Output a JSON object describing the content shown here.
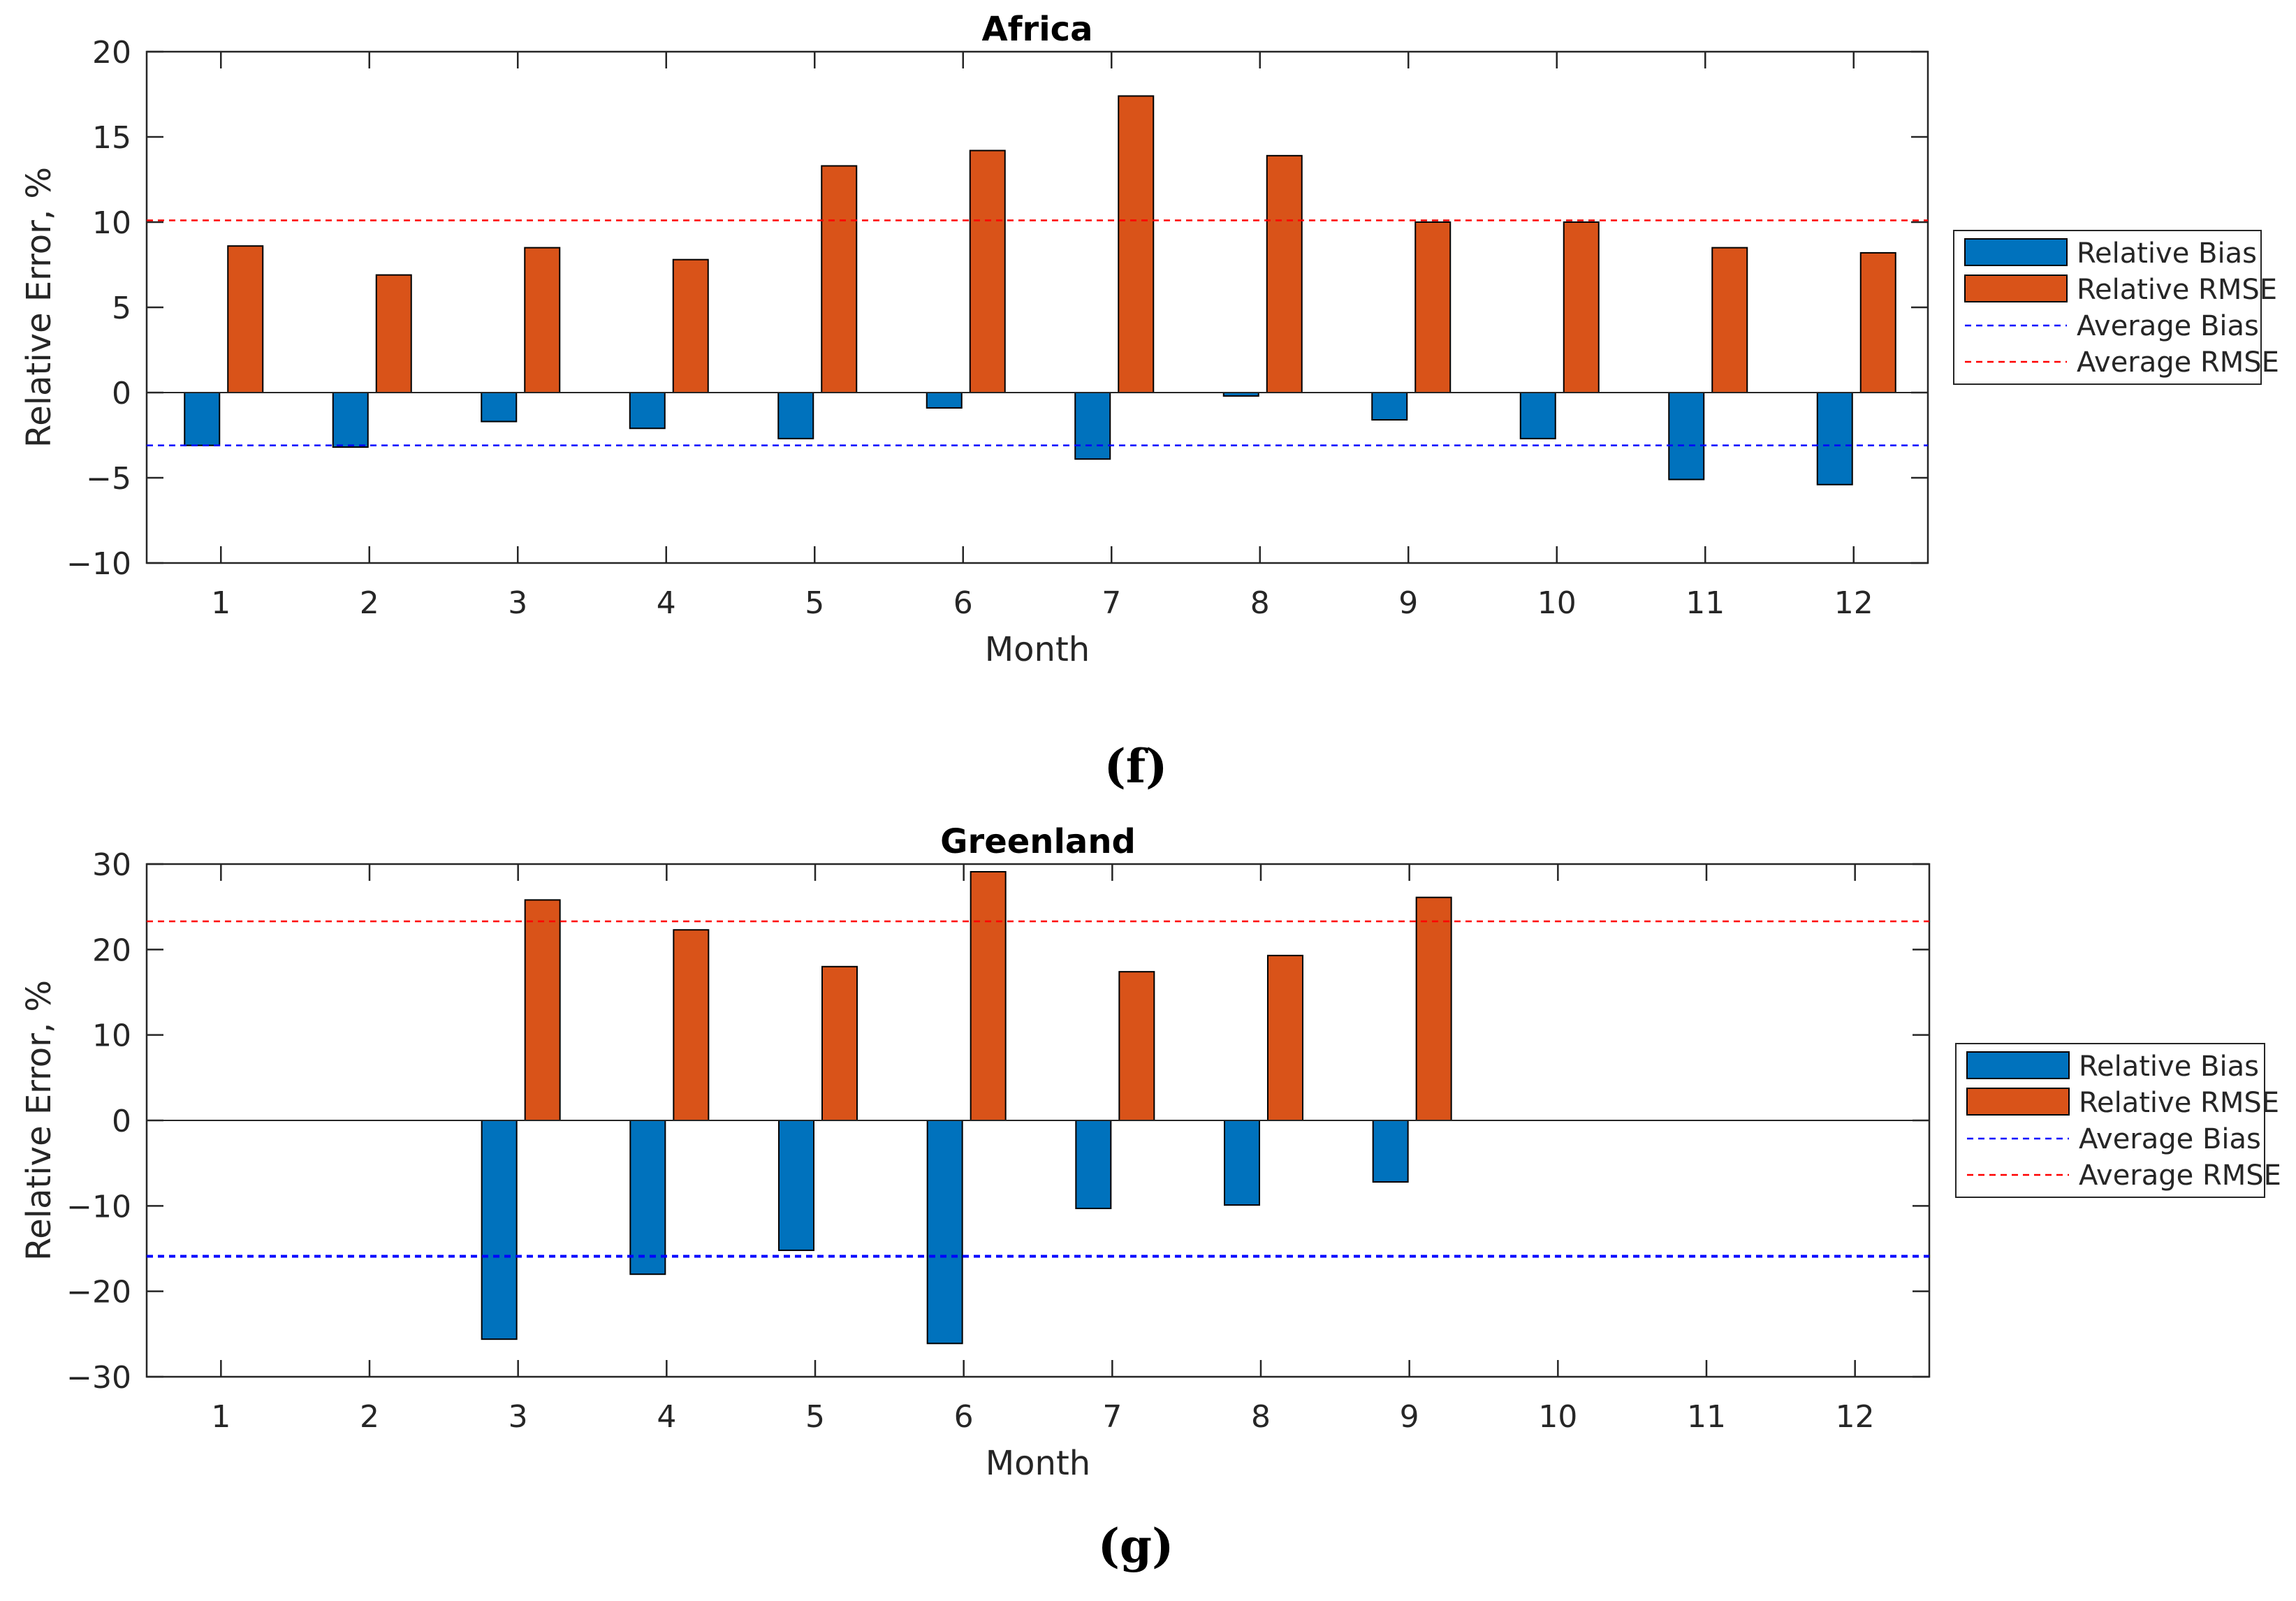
{
  "chart_data": [
    {
      "type": "bar",
      "title": "Africa",
      "xlabel": "Month",
      "ylabel": "Relative Error, %",
      "panel_label": "(f)",
      "categories": [
        "1",
        "2",
        "3",
        "4",
        "5",
        "6",
        "7",
        "8",
        "9",
        "10",
        "11",
        "12"
      ],
      "ylim": [
        -10,
        20
      ],
      "yticks": [
        -10,
        -5,
        0,
        5,
        10,
        15,
        20
      ],
      "series": [
        {
          "name": "Relative Bias",
          "color": "#0072BD",
          "values": [
            -3.1,
            -3.2,
            -1.7,
            -2.1,
            -2.7,
            -0.9,
            -3.9,
            -0.2,
            -1.6,
            -2.7,
            -5.1,
            -5.4
          ]
        },
        {
          "name": "Relative RMSE",
          "color": "#D95319",
          "values": [
            8.6,
            6.9,
            8.5,
            7.8,
            13.3,
            14.2,
            17.4,
            13.9,
            10.0,
            10.0,
            8.5,
            8.2
          ]
        }
      ],
      "reference_lines": [
        {
          "name": "Average Bias",
          "value": -3.1,
          "color": "#0000FF",
          "style": "dashed"
        },
        {
          "name": "Average RMSE",
          "value": 10.1,
          "color": "#FF0000",
          "style": "dashed"
        }
      ],
      "legend": "right",
      "grid": false
    },
    {
      "type": "bar",
      "title": "Greenland",
      "xlabel": "Month",
      "ylabel": "Relative Error, %",
      "panel_label": "(g)",
      "categories": [
        "1",
        "2",
        "3",
        "4",
        "5",
        "6",
        "7",
        "8",
        "9",
        "10",
        "11",
        "12"
      ],
      "ylim": [
        -30,
        30
      ],
      "yticks": [
        -30,
        -20,
        -10,
        0,
        10,
        20,
        30
      ],
      "series": [
        {
          "name": "Relative Bias",
          "color": "#0072BD",
          "values": [
            null,
            null,
            -25.6,
            -18.0,
            -15.2,
            -26.1,
            -10.3,
            -9.9,
            -7.2,
            null,
            null,
            null
          ]
        },
        {
          "name": "Relative RMSE",
          "color": "#D95319",
          "values": [
            null,
            null,
            25.8,
            22.3,
            18.0,
            29.1,
            17.4,
            19.3,
            26.1,
            null,
            null,
            null
          ]
        }
      ],
      "reference_lines": [
        {
          "name": "Average Bias",
          "value": -15.9,
          "color": "#0000FF",
          "style": "dashed"
        },
        {
          "name": "Average RMSE",
          "value": 23.3,
          "color": "#FF0000",
          "style": "dashed"
        }
      ],
      "legend": "right",
      "grid": false
    }
  ]
}
